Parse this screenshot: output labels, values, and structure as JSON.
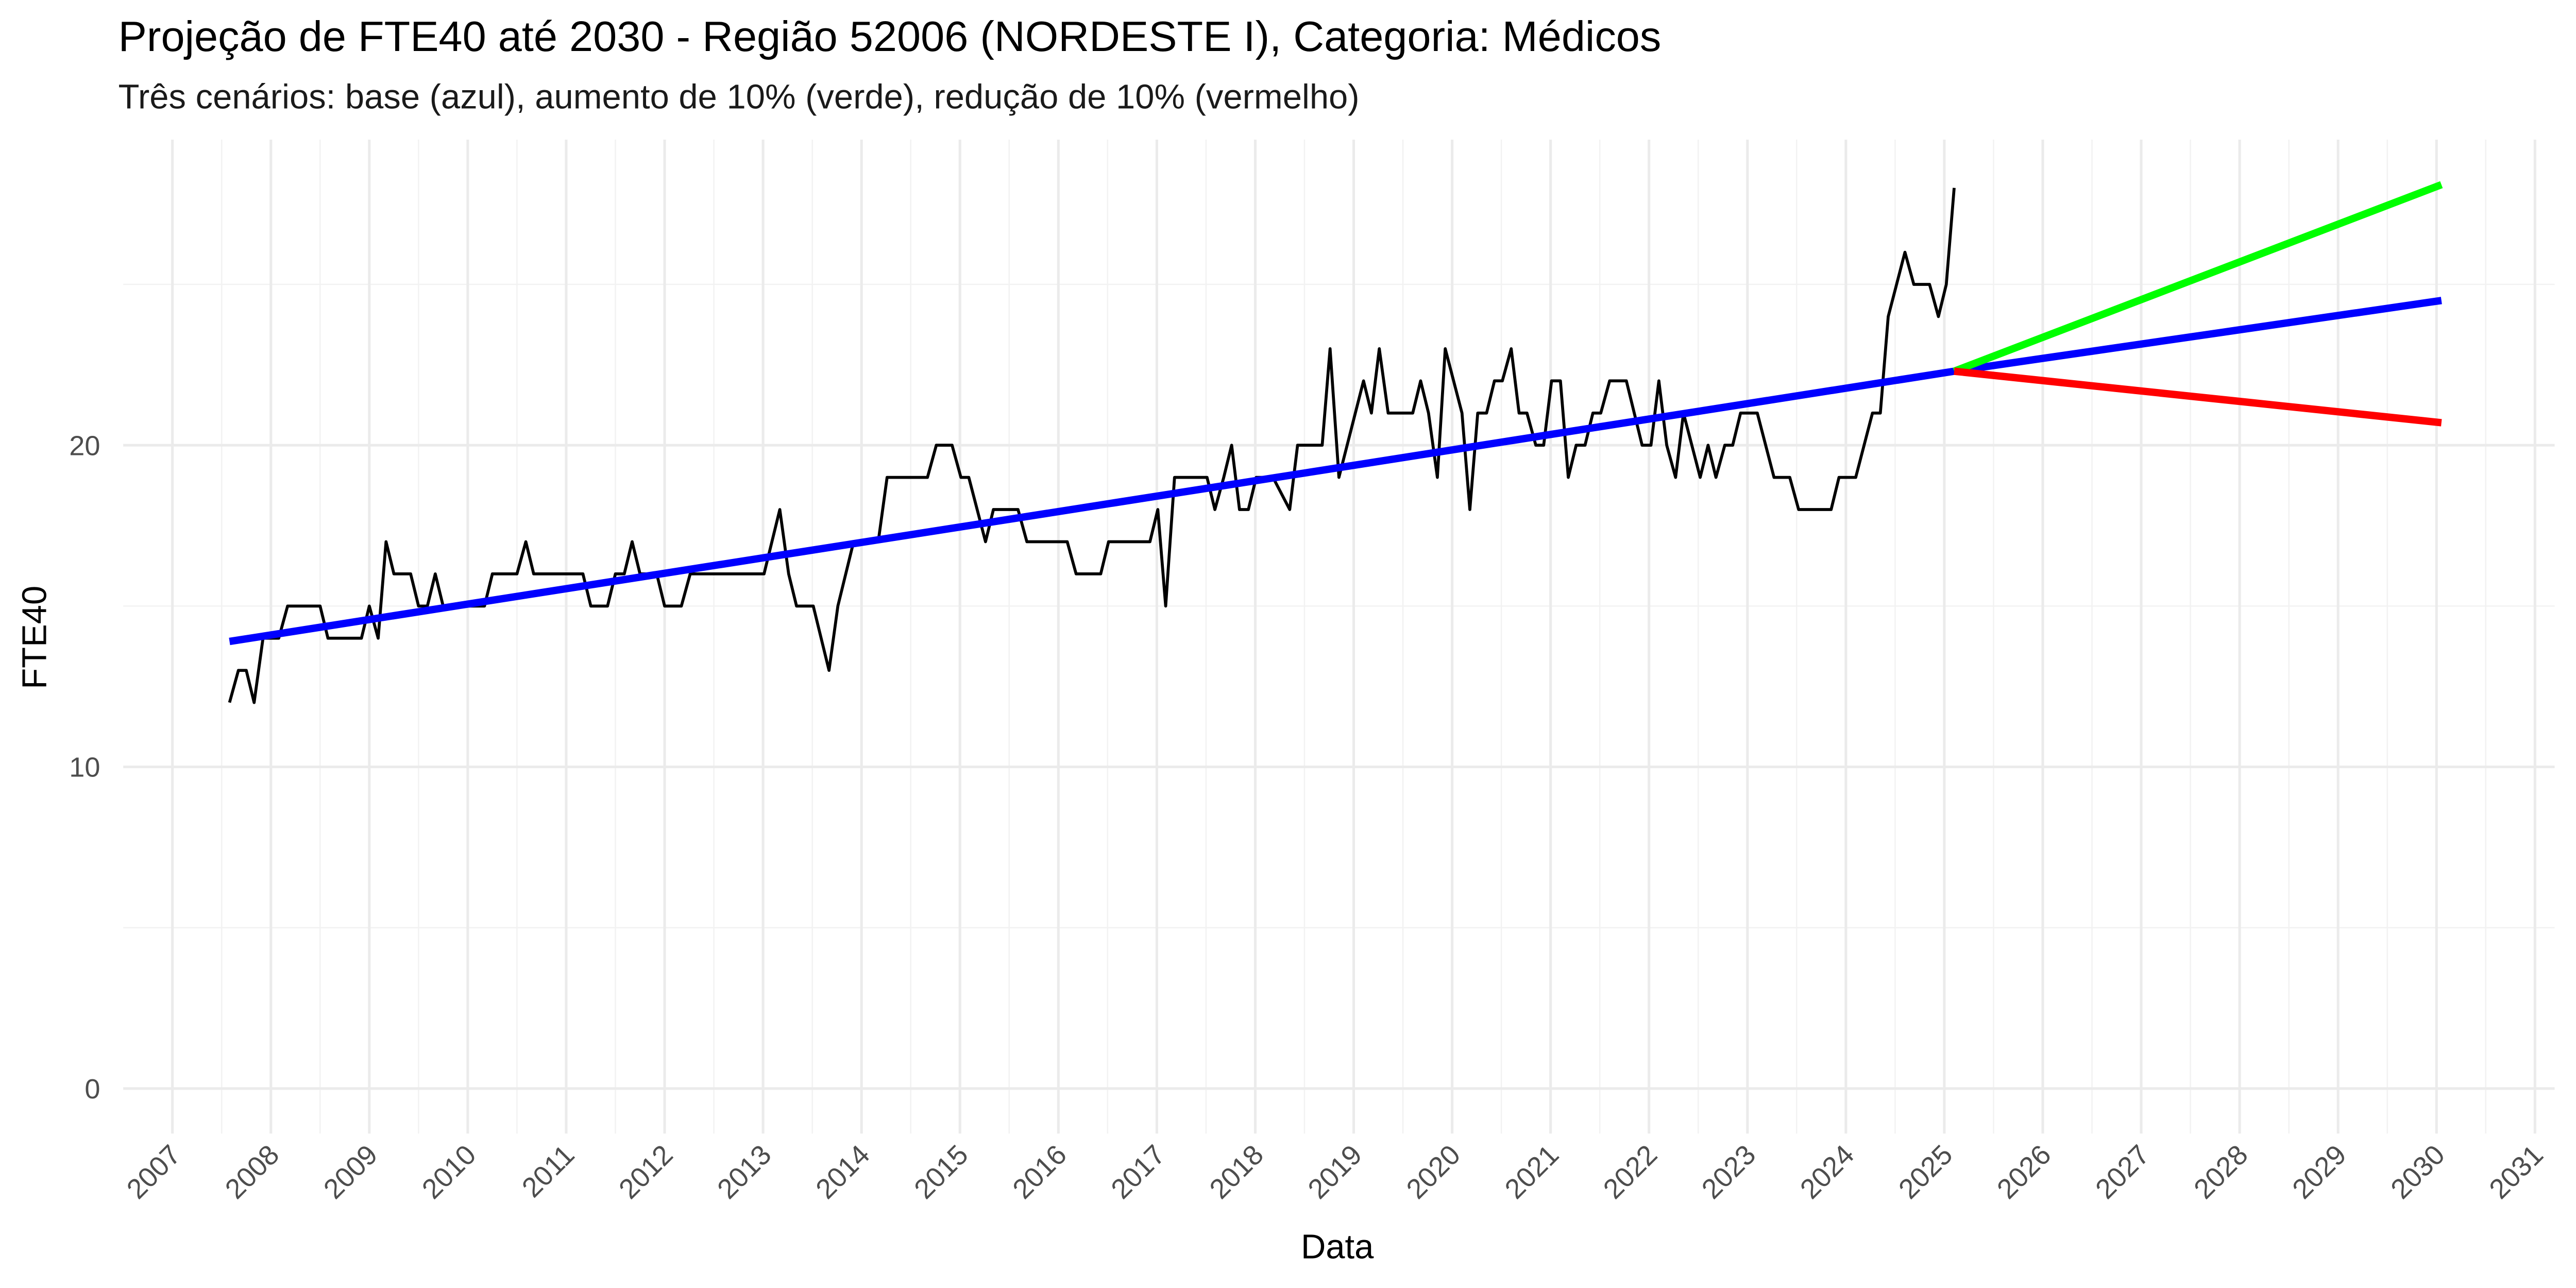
{
  "chart_data": {
    "type": "line",
    "title": "Projeção de FTE40 até 2030 - Região 52006 (NORDESTE I), Categoria: Médicos",
    "subtitle": "Três cenários: base (azul), aumento de 10% (verde), redução de 10% (vermelho)",
    "x_label": "Data",
    "y_label": "FTE40",
    "xlim": [
      2006.5,
      2031.2
    ],
    "ylim": [
      -1.4,
      29.5
    ],
    "xticks": [
      2007,
      2008,
      2009,
      2010,
      2011,
      2012,
      2013,
      2014,
      2015,
      2016,
      2017,
      2018,
      2019,
      2020,
      2021,
      2022,
      2023,
      2024,
      2025,
      2026,
      2027,
      2028,
      2029,
      2030,
      2031
    ],
    "yticks": [
      0,
      10,
      20
    ],
    "grid": true,
    "series": [
      {
        "color": "#000000",
        "x": [
          2007.58,
          2007.67,
          2007.75,
          2007.83,
          2007.92,
          2008.08,
          2008.17,
          2008.5,
          2008.58,
          2008.92,
          2009.0,
          2009.09,
          2009.17,
          2009.25,
          2009.42,
          2009.5,
          2009.59,
          2009.67,
          2009.75,
          2009.84,
          2010.17,
          2010.25,
          2010.5,
          2010.59,
          2010.67,
          2011.17,
          2011.25,
          2011.42,
          2011.5,
          2011.59,
          2011.67,
          2011.75,
          2011.92,
          2012.0,
          2012.17,
          2012.26,
          2013.01,
          2013.17,
          2013.26,
          2013.34,
          2013.51,
          2013.67,
          2013.76,
          2013.92,
          2014.17,
          2014.26,
          2014.67,
          2014.76,
          2014.92,
          2015.01,
          2015.09,
          2015.26,
          2015.34,
          2015.59,
          2015.68,
          2016.09,
          2016.18,
          2016.43,
          2016.51,
          2016.93,
          2017.01,
          2017.09,
          2017.18,
          2017.51,
          2017.59,
          2017.68,
          2017.76,
          2017.84,
          2017.93,
          2018.01,
          2018.18,
          2018.35,
          2018.43,
          2018.68,
          2018.76,
          2018.85,
          2019.1,
          2019.18,
          2019.26,
          2019.35,
          2019.6,
          2019.68,
          2019.76,
          2019.85,
          2019.93,
          2020.1,
          2020.18,
          2020.26,
          2020.35,
          2020.43,
          2020.51,
          2020.6,
          2020.68,
          2020.76,
          2020.85,
          2020.93,
          2021.01,
          2021.1,
          2021.18,
          2021.26,
          2021.35,
          2021.43,
          2021.51,
          2021.6,
          2021.77,
          2021.85,
          2021.93,
          2022.02,
          2022.1,
          2022.18,
          2022.27,
          2022.35,
          2022.52,
          2022.6,
          2022.68,
          2022.77,
          2022.85,
          2022.93,
          2023.1,
          2023.27,
          2023.43,
          2023.52,
          2023.85,
          2023.93,
          2024.1,
          2024.27,
          2024.35,
          2024.43,
          2024.6,
          2024.69,
          2024.85,
          2024.94,
          2025.02,
          2025.1
        ],
        "values": [
          12,
          13,
          13,
          12,
          14,
          14,
          15,
          15,
          14,
          14,
          15,
          14,
          17,
          16,
          16,
          15,
          15,
          16,
          15,
          15,
          15,
          16,
          16,
          17,
          16,
          16,
          15,
          15,
          16,
          16,
          17,
          16,
          16,
          15,
          15,
          16,
          16,
          18,
          16,
          15,
          15,
          13,
          15,
          17,
          17,
          19,
          19,
          20,
          20,
          19,
          19,
          17,
          18,
          18,
          17,
          17,
          16,
          16,
          17,
          17,
          18,
          15,
          19,
          19,
          18,
          19,
          20,
          18,
          18,
          19,
          19,
          18,
          20,
          20,
          23,
          19,
          22,
          21,
          23,
          21,
          21,
          22,
          21,
          19,
          23,
          21,
          18,
          21,
          21,
          22,
          22,
          23,
          21,
          21,
          20,
          20,
          22,
          22,
          19,
          20,
          20,
          21,
          21,
          22,
          22,
          21,
          20,
          20,
          22,
          20,
          19,
          21,
          19,
          20,
          19,
          20,
          20,
          21,
          21,
          19,
          19,
          18,
          18,
          19,
          19,
          21,
          21,
          24,
          26,
          25,
          25,
          24,
          25,
          28
        ]
      },
      {
        "color": "#0000ff",
        "x": [
          2007.58,
          2025.1,
          2030.05
        ],
        "values": [
          13.9,
          22.3,
          24.5
        ]
      },
      {
        "color": "#00ff00",
        "x": [
          2025.1,
          2030.05
        ],
        "values": [
          22.3,
          28.1
        ]
      },
      {
        "color": "#ff0000",
        "x": [
          2025.1,
          2030.05
        ],
        "values": [
          22.3,
          20.7
        ]
      }
    ]
  }
}
